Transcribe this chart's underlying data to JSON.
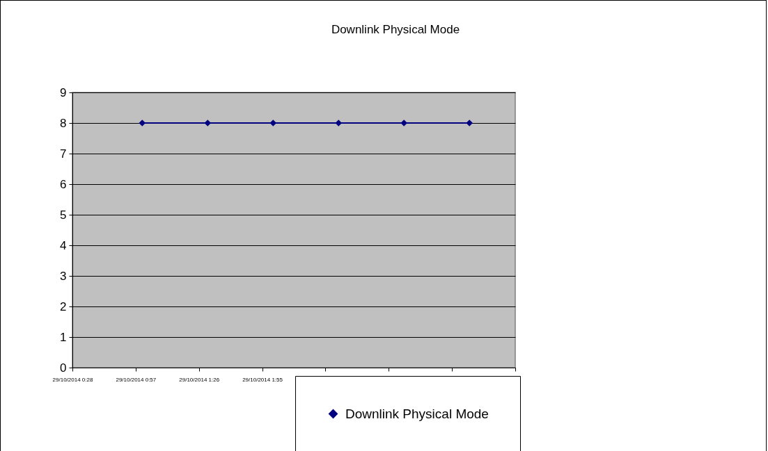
{
  "chart_data": {
    "type": "line",
    "title": "Downlink Physical Mode",
    "x": [
      "2014-10-29T01:00",
      "2014-10-29T01:30",
      "2014-10-29T02:00",
      "2014-10-29T02:30",
      "2014-10-29T03:00",
      "2014-10-29T03:30"
    ],
    "series": [
      {
        "name": "Downlink Physical Mode",
        "color": "#000080",
        "values": [
          8,
          8,
          8,
          8,
          8,
          8
        ]
      }
    ],
    "xlim": [
      "2014-10-29T00:28",
      "2014-10-29T03:51"
    ],
    "xticks": [
      {
        "value": "2014-10-29T00:28",
        "label": "29/10/2014  0:28"
      },
      {
        "value": "2014-10-29T00:57",
        "label": "29/10/2014  0:57"
      },
      {
        "value": "2014-10-29T01:26",
        "label": "29/10/2014  1:26"
      },
      {
        "value": "2014-10-29T01:55",
        "label": "29/10/2014  1:55"
      },
      {
        "value": "2014-10-29T02:24",
        "label": null
      },
      {
        "value": "2014-10-29T02:53",
        "label": null
      },
      {
        "value": "2014-10-29T03:22",
        "label": null
      },
      {
        "value": "2014-10-29T03:51",
        "label": null
      }
    ],
    "ylim": [
      0,
      9
    ],
    "yticks": [
      0,
      1,
      2,
      3,
      4,
      5,
      6,
      7,
      8,
      9
    ],
    "grid": "y",
    "legend": "bottom",
    "marker": "diamond",
    "line_style": "solid"
  }
}
